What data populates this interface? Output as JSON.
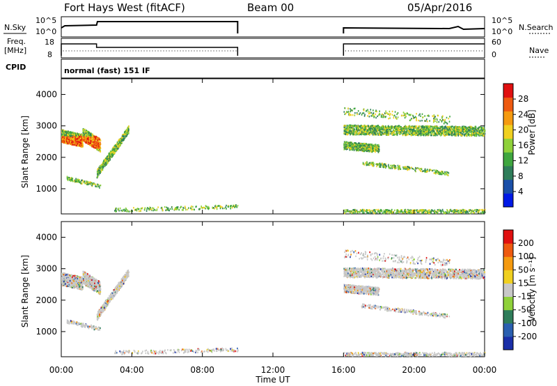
{
  "header": {
    "radar": "Fort Hays West (fitACF)",
    "beam": "Beam 00",
    "date": "05/Apr/2016"
  },
  "status_panels": {
    "left_labels": {
      "nsky": "N.Sky",
      "freq": "Freq.",
      "freq_unit": "[MHz]",
      "cpid": "CPID"
    },
    "right_labels": {
      "nsearch": "N.Search",
      "nave": "Nave"
    },
    "noise_left_ticks": [
      "10^5",
      "10^0"
    ],
    "noise_right_ticks": [
      "10^5",
      "10^0"
    ],
    "freq_left_ticks": [
      "18",
      "8"
    ],
    "freq_right_ticks": [
      "60",
      "0"
    ],
    "cpid_text": "normal (fast) 151 IF"
  },
  "chart_data": [
    {
      "type": "heatmap",
      "name": "power",
      "ylabel": "Slant Range [km]",
      "ylim": [
        200,
        4500
      ],
      "yticks": [
        "1000",
        "2000",
        "3000",
        "4000"
      ],
      "xlim": [
        "00:00",
        "24:00"
      ],
      "colorbar_label": "Power [dB]",
      "colorbar_ticks": [
        "4",
        "8",
        "12",
        "16",
        "20",
        "24",
        "28"
      ],
      "colors": [
        "#0019e6",
        "#1a4fa8",
        "#2f7d5a",
        "#3fa63f",
        "#8fd13a",
        "#f0d020",
        "#f59a10",
        "#ee5a10",
        "#e01010"
      ],
      "echo_regions_note": ""
    },
    {
      "type": "heatmap",
      "name": "velocity",
      "ylabel": "Slant Range [km]",
      "ylim": [
        200,
        4500
      ],
      "yticks": [
        "1000",
        "2000",
        "3000",
        "4000"
      ],
      "xlim": [
        "00:00",
        "24:00"
      ],
      "colorbar_label": "Velocity [m s⁻¹]",
      "colorbar_ticks": [
        "200",
        "100",
        "50",
        "15",
        "-15",
        "-50",
        "-100",
        "-200"
      ],
      "colors": [
        "#1a2fa8",
        "#2a5fb0",
        "#2f7d5a",
        "#8fd13a",
        "#c8c8c8",
        "#f0d020",
        "#f59a10",
        "#ee5a10",
        "#e01010"
      ]
    }
  ],
  "xaxis": {
    "ticks": [
      "00:00",
      "04:00",
      "08:00",
      "12:00",
      "16:00",
      "20:00",
      "00:00"
    ],
    "label": "Time UT"
  }
}
